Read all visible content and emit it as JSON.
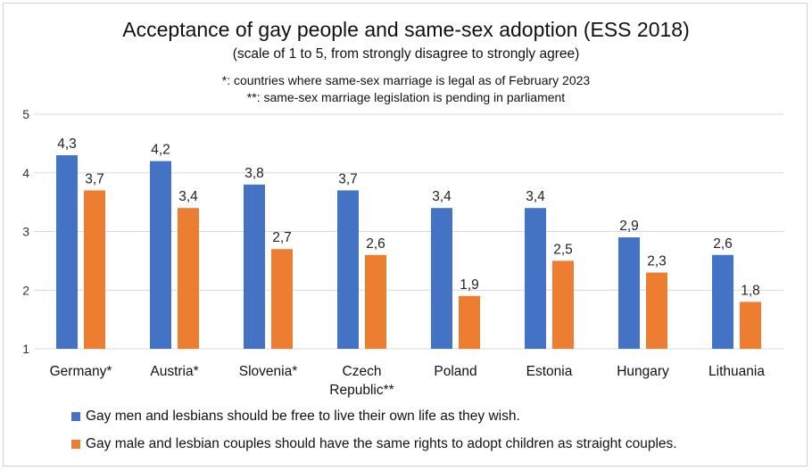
{
  "chart_data": {
    "type": "bar",
    "title": "Acceptance of gay people and same-sex adoption (ESS 2018)",
    "subtitle": "(scale of 1 to 5, from strongly disagree to strongly agree)",
    "notes": [
      "*: countries where same-sex marriage is legal as of February 2023",
      "**: same-sex marriage legislation is pending in parliament"
    ],
    "categories": [
      [
        "Germany*"
      ],
      [
        "Austria*"
      ],
      [
        "Slovenia*"
      ],
      [
        "Czech",
        "Republic**"
      ],
      [
        "Poland"
      ],
      [
        "Estonia"
      ],
      [
        "Hungary"
      ],
      [
        "Lithuania"
      ]
    ],
    "series": [
      {
        "name": "Gay men and lesbians should be free to live their own life as they wish.",
        "color": "#4472C4",
        "values": [
          4.3,
          4.2,
          3.8,
          3.7,
          3.4,
          3.4,
          2.9,
          2.6
        ],
        "labels": [
          "4,3",
          "4,2",
          "3,8",
          "3,7",
          "3,4",
          "3,4",
          "2,9",
          "2,6"
        ]
      },
      {
        "name": "Gay male and lesbian couples should have the same rights to adopt children as straight couples.",
        "color": "#ED7D31",
        "values": [
          3.7,
          3.4,
          2.7,
          2.6,
          1.9,
          2.5,
          2.3,
          1.8
        ],
        "labels": [
          "3,7",
          "3,4",
          "2,7",
          "2,6",
          "1,9",
          "2,5",
          "2,3",
          "1,8"
        ]
      }
    ],
    "ylim": [
      1,
      5
    ],
    "yticks": [
      "1",
      "2",
      "3",
      "4",
      "5"
    ],
    "grid": true,
    "legend_position": "bottom"
  }
}
